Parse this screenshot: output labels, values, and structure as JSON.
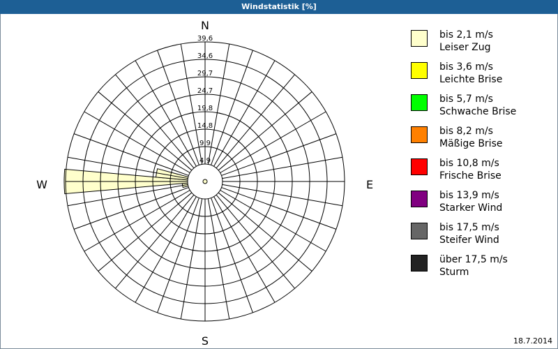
{
  "title": "Windstatistik [%]",
  "date": "18.7.2014",
  "chart_data": {
    "type": "wind-rose",
    "title": "Windstatistik [%]",
    "directions": {
      "north": "N",
      "east": "E",
      "south": "S",
      "west": "W"
    },
    "sector_width_deg": 10,
    "radial_ticks": [
      "4,9",
      "9,9",
      "14,8",
      "19,8",
      "24,7",
      "29,7",
      "34,6",
      "39,6"
    ],
    "radial_max": 39.6,
    "grid": true,
    "legend_position": "right",
    "classes": [
      {
        "range": "bis 2,1 m/s",
        "name": "Leiser Zug",
        "color": "#ffffcc"
      },
      {
        "range": "bis 3,6 m/s",
        "name": "Leichte Brise",
        "color": "#ffff00"
      },
      {
        "range": "bis 5,7 m/s",
        "name": "Schwache Brise",
        "color": "#00ff00"
      },
      {
        "range": "bis 8,2 m/s",
        "name": "Mäßige Brise",
        "color": "#ff8000"
      },
      {
        "range": "bis 10,8 m/s",
        "name": "Frische Brise",
        "color": "#ff0000"
      },
      {
        "range": "bis 13,9 m/s",
        "name": "Starker Wind",
        "color": "#800080"
      },
      {
        "range": "bis 17,5 m/s",
        "name": "Steifer Wind",
        "color": "#666666"
      },
      {
        "range": "über 17,5 m/s",
        "name": "Sturm",
        "color": "#222222"
      }
    ],
    "sectors": [
      {
        "direction_deg": 250,
        "values": [
          1.0,
          0,
          0,
          0,
          0,
          0,
          0,
          0
        ]
      },
      {
        "direction_deg": 260,
        "values": [
          6.5,
          0,
          0,
          0,
          0,
          0,
          0,
          0
        ]
      },
      {
        "direction_deg": 270,
        "values": [
          40.0,
          0,
          0,
          0,
          0,
          0,
          0,
          0
        ]
      },
      {
        "direction_deg": 280,
        "values": [
          14.0,
          0,
          0,
          0,
          0,
          0,
          0,
          0
        ]
      },
      {
        "direction_deg": 290,
        "values": [
          1.0,
          0,
          0,
          0,
          0,
          0,
          0,
          0
        ]
      }
    ]
  }
}
